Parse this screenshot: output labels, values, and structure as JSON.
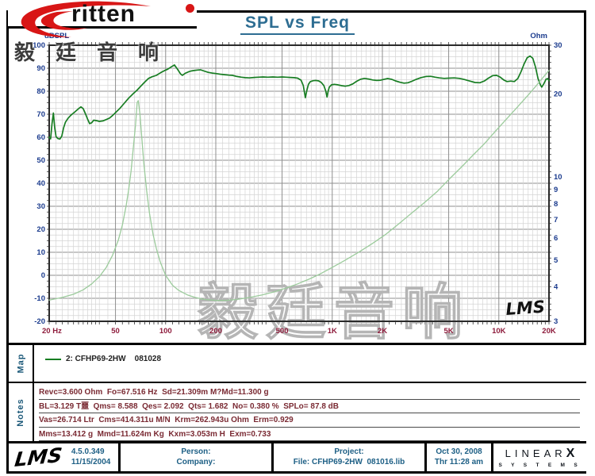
{
  "header": {
    "title": "SPL vs Freq"
  },
  "logo": {
    "text": "ritten",
    "cjk": "毅廷音响"
  },
  "chart_data": {
    "type": "line",
    "title": "SPL vs Freq",
    "x_axis": {
      "scale": "log",
      "range": [
        20,
        20000
      ],
      "ticks": [
        {
          "f": 20,
          "label": "20 Hz"
        },
        {
          "f": 50,
          "label": "50"
        },
        {
          "f": 100,
          "label": "100"
        },
        {
          "f": 200,
          "label": "200"
        },
        {
          "f": 500,
          "label": "500"
        },
        {
          "f": 1000,
          "label": "1K"
        },
        {
          "f": 2000,
          "label": "2K"
        },
        {
          "f": 5000,
          "label": "5K"
        },
        {
          "f": 10000,
          "label": "10K"
        },
        {
          "f": 20000,
          "label": "20K"
        }
      ]
    },
    "y_left": {
      "label": "dBSPL",
      "range": [
        -20,
        100
      ],
      "ticks": [
        100,
        90,
        80,
        70,
        60,
        50,
        40,
        30,
        20,
        10,
        0,
        -10,
        -20
      ]
    },
    "y_right": {
      "label": "Ohm",
      "scale": "log",
      "range": [
        3,
        30
      ],
      "ticks": [
        30,
        20,
        10,
        9,
        8,
        7,
        6,
        5,
        4,
        3
      ]
    },
    "grid": {
      "on": true,
      "y_minor_step_db": 2.5
    },
    "annotations": {
      "stamp": "LMS",
      "watermark": "毅廷音响"
    },
    "colors": {
      "spl": "#177d22",
      "impedance": "#9ccb9c",
      "grid_minor": "#d4d4d4",
      "grid_major": "#8f8f8f",
      "border": "#2a2a2a",
      "axis_left": "#1c3c8e",
      "axis_bottom": "#8e1c3c",
      "tick": "#333333",
      "watermark_stroke": "#b5b5b5",
      "watermark_fill": "rgba(255,255,255,0.6)"
    },
    "series": [
      {
        "name": "2: CFHP69-2HW    081028",
        "axis": "left",
        "color": "#177d22",
        "width": 1.7,
        "points": [
          [
            20,
            60
          ],
          [
            20.4,
            59.3
          ],
          [
            20.8,
            66
          ],
          [
            21.2,
            70.5
          ],
          [
            21.6,
            64
          ],
          [
            22,
            60.2
          ],
          [
            22.6,
            59.4
          ],
          [
            23.2,
            59.2
          ],
          [
            23.8,
            60.5
          ],
          [
            24.4,
            64
          ],
          [
            25,
            66.5
          ],
          [
            26,
            68.3
          ],
          [
            27,
            69.6
          ],
          [
            28.5,
            71
          ],
          [
            30,
            72.4
          ],
          [
            31,
            73.2
          ],
          [
            32,
            72.4
          ],
          [
            33,
            70.2
          ],
          [
            34,
            67.9
          ],
          [
            35,
            65.9
          ],
          [
            36,
            66.3
          ],
          [
            37,
            67.4
          ],
          [
            38.5,
            67.2
          ],
          [
            40,
            66.9
          ],
          [
            42,
            67.1
          ],
          [
            44,
            67.7
          ],
          [
            46,
            68.3
          ],
          [
            48,
            69.4
          ],
          [
            50,
            70.7
          ],
          [
            53,
            72.5
          ],
          [
            56,
            74.5
          ],
          [
            60,
            77
          ],
          [
            64,
            79
          ],
          [
            67.5,
            80.5
          ],
          [
            71,
            82.2
          ],
          [
            75,
            84
          ],
          [
            79,
            85.6
          ],
          [
            83,
            86.3
          ],
          [
            88,
            86.9
          ],
          [
            93,
            88
          ],
          [
            98,
            88.9
          ],
          [
            103,
            89.6
          ],
          [
            108,
            90.6
          ],
          [
            113,
            91.4
          ],
          [
            118,
            89.5
          ],
          [
            123,
            87.5
          ],
          [
            126,
            86.9
          ],
          [
            131,
            87.8
          ],
          [
            137,
            88.4
          ],
          [
            142,
            88.8
          ],
          [
            148,
            89
          ],
          [
            155,
            89.2
          ],
          [
            162,
            89.3
          ],
          [
            170,
            88.8
          ],
          [
            180,
            88.2
          ],
          [
            190,
            87.9
          ],
          [
            200,
            87.7
          ],
          [
            212,
            87.4
          ],
          [
            225,
            87.2
          ],
          [
            240,
            87
          ],
          [
            252,
            86.9
          ],
          [
            268,
            86.4
          ],
          [
            285,
            86.1
          ],
          [
            300,
            85.9
          ],
          [
            318,
            85.8
          ],
          [
            340,
            86
          ],
          [
            360,
            86.1
          ],
          [
            385,
            86.2
          ],
          [
            410,
            86.1
          ],
          [
            440,
            86.2
          ],
          [
            470,
            86.1
          ],
          [
            500,
            86.2
          ],
          [
            530,
            86.1
          ],
          [
            560,
            86
          ],
          [
            590,
            85.9
          ],
          [
            620,
            85.7
          ],
          [
            650,
            84.8
          ],
          [
            670,
            82.5
          ],
          [
            690,
            77.2
          ],
          [
            705,
            80.5
          ],
          [
            720,
            83
          ],
          [
            740,
            84.2
          ],
          [
            770,
            84.6
          ],
          [
            800,
            84.7
          ],
          [
            830,
            84.5
          ],
          [
            860,
            83.8
          ],
          [
            890,
            82.5
          ],
          [
            915,
            80
          ],
          [
            930,
            77.5
          ],
          [
            945,
            80
          ],
          [
            960,
            81.8
          ],
          [
            990,
            82.8
          ],
          [
            1030,
            83
          ],
          [
            1080,
            82.8
          ],
          [
            1140,
            82.4
          ],
          [
            1200,
            82.2
          ],
          [
            1260,
            82.5
          ],
          [
            1330,
            83.2
          ],
          [
            1400,
            84.3
          ],
          [
            1480,
            85.2
          ],
          [
            1560,
            85.6
          ],
          [
            1650,
            85.3
          ],
          [
            1750,
            84.9
          ],
          [
            1850,
            84.7
          ],
          [
            1950,
            84.8
          ],
          [
            2050,
            85.2
          ],
          [
            2150,
            85.5
          ],
          [
            2270,
            85.2
          ],
          [
            2400,
            84.5
          ],
          [
            2550,
            83.9
          ],
          [
            2700,
            83.5
          ],
          [
            2850,
            83.7
          ],
          [
            3000,
            84.3
          ],
          [
            3200,
            85.2
          ],
          [
            3400,
            85.9
          ],
          [
            3650,
            86.4
          ],
          [
            3900,
            86.5
          ],
          [
            4150,
            86.1
          ],
          [
            4400,
            85.8
          ],
          [
            4700,
            85.6
          ],
          [
            5000,
            85.7
          ],
          [
            5400,
            85.8
          ],
          [
            5800,
            85.6
          ],
          [
            6200,
            85.1
          ],
          [
            6700,
            84.4
          ],
          [
            7200,
            83.8
          ],
          [
            7700,
            83.7
          ],
          [
            8200,
            84.5
          ],
          [
            8700,
            85.8
          ],
          [
            9200,
            86.8
          ],
          [
            9700,
            86.9
          ],
          [
            10200,
            86.1
          ],
          [
            10700,
            84.9
          ],
          [
            11200,
            84.2
          ],
          [
            11800,
            84.4
          ],
          [
            12400,
            84.2
          ],
          [
            13000,
            85.5
          ],
          [
            13600,
            88.5
          ],
          [
            14200,
            92
          ],
          [
            14800,
            94.6
          ],
          [
            15400,
            95.3
          ],
          [
            16000,
            94.3
          ],
          [
            16600,
            90.5
          ],
          [
            17200,
            85.5
          ],
          [
            17800,
            82.6
          ],
          [
            18100,
            81.8
          ],
          [
            18600,
            83.2
          ],
          [
            19200,
            85.2
          ],
          [
            19600,
            85.5
          ],
          [
            20000,
            84.6
          ]
        ]
      },
      {
        "name": "Impedance",
        "axis": "right",
        "color": "#9ccb9c",
        "width": 1.3,
        "points": [
          [
            20,
            3.58
          ],
          [
            24,
            3.66
          ],
          [
            28,
            3.76
          ],
          [
            32,
            3.9
          ],
          [
            36,
            4.1
          ],
          [
            40,
            4.35
          ],
          [
            44,
            4.7
          ],
          [
            48,
            5.2
          ],
          [
            52,
            5.9
          ],
          [
            55,
            6.7
          ],
          [
            58,
            7.9
          ],
          [
            60,
            9.0
          ],
          [
            62,
            10.5
          ],
          [
            64,
            12.8
          ],
          [
            66,
            15.5
          ],
          [
            67.5,
            18.6
          ],
          [
            68.5,
            18.9
          ],
          [
            70,
            17.0
          ],
          [
            72,
            13.8
          ],
          [
            74,
            11.2
          ],
          [
            77,
            8.9
          ],
          [
            80,
            7.4
          ],
          [
            84,
            6.2
          ],
          [
            88,
            5.5
          ],
          [
            93,
            4.9
          ],
          [
            100,
            4.4
          ],
          [
            110,
            4.05
          ],
          [
            120,
            3.88
          ],
          [
            135,
            3.74
          ],
          [
            150,
            3.66
          ],
          [
            170,
            3.6
          ],
          [
            200,
            3.57
          ],
          [
            230,
            3.57
          ],
          [
            270,
            3.6
          ],
          [
            320,
            3.66
          ],
          [
            380,
            3.74
          ],
          [
            450,
            3.84
          ],
          [
            530,
            3.96
          ],
          [
            620,
            4.1
          ],
          [
            730,
            4.27
          ],
          [
            850,
            4.46
          ],
          [
            1000,
            4.7
          ],
          [
            1200,
            5.0
          ],
          [
            1450,
            5.35
          ],
          [
            1750,
            5.75
          ],
          [
            2100,
            6.2
          ],
          [
            2500,
            6.75
          ],
          [
            3000,
            7.4
          ],
          [
            3600,
            8.1
          ],
          [
            4300,
            8.9
          ],
          [
            5100,
            9.9
          ],
          [
            6000,
            10.9
          ],
          [
            7000,
            12.0
          ],
          [
            8200,
            13.2
          ],
          [
            9500,
            14.6
          ],
          [
            11000,
            16.1
          ],
          [
            12800,
            17.8
          ],
          [
            15000,
            19.8
          ],
          [
            17000,
            21.6
          ],
          [
            18500,
            23.0
          ],
          [
            20000,
            24.3
          ]
        ]
      }
    ]
  },
  "map": {
    "label": "Map",
    "legend": "2: CFHP69-2HW    081028"
  },
  "notes": {
    "label": "Notes",
    "lines": [
      "Revc=3.600 Ohm  Fo=67.516 Hz  Sd=21.309m M?Md=11.300 g",
      "BL=3.129 T噩  Qms= 8.588  Qes= 2.092  Qts= 1.682  No= 0.380 %  SPLo= 87.8 dB",
      "Vas=26.714 Ltr  Cms=414.311u M/N  Krm=262.943u Ohm  Erm=0.929",
      "Mms=13.412 g  Mmd=11.624m Kg  Kxm=3.053m H  Exm=0.733"
    ]
  },
  "footer": {
    "lms": "LMS",
    "version": "4.5.0.349",
    "version_date": "11/15/2004",
    "person_label": "Person:",
    "company_label": "Company:",
    "project_label": "Project:",
    "file_label": "File: CFHP69-2HW  081016.lib",
    "date": "Oct 30, 2008",
    "time": "Thr 11:28 am",
    "brand_top": "LINEAR",
    "brand_x": "X",
    "brand_bottom": "S Y S T E M S"
  }
}
